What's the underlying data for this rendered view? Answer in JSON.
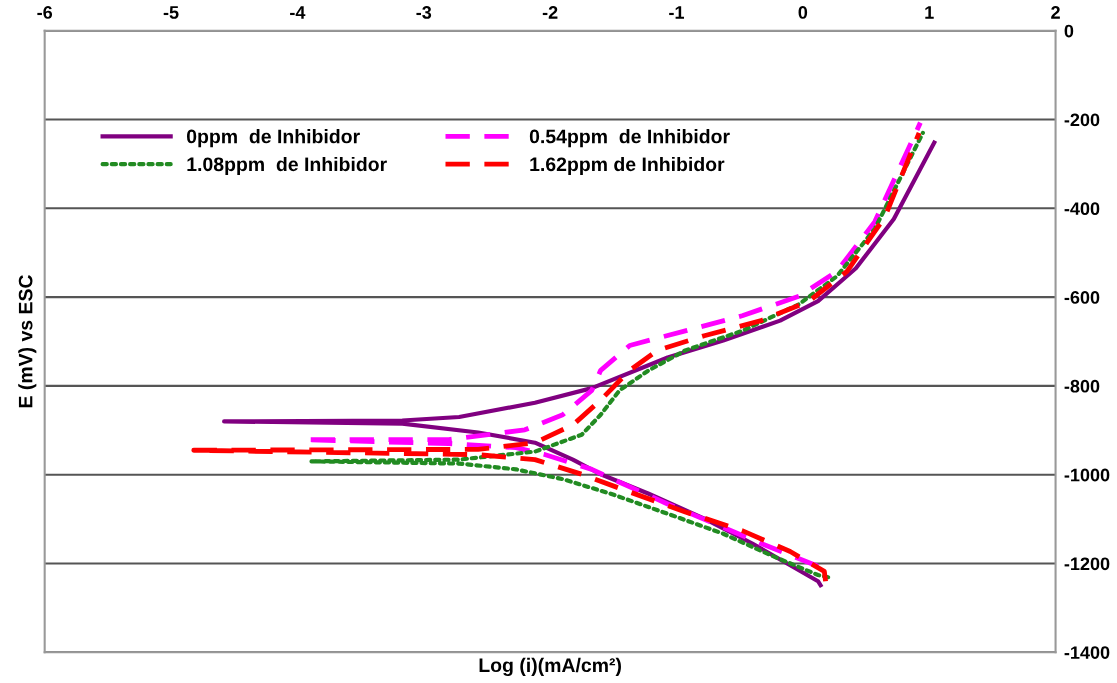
{
  "chart_data": {
    "type": "line",
    "xlabel": "Log (i)(mA/cm²)",
    "ylabel": "E (mV) vs ESC",
    "xlim": [
      -6,
      2
    ],
    "xticks": [
      -6,
      -5,
      -4,
      -3,
      -2,
      -1,
      0,
      1,
      2
    ],
    "ylim": [
      -1400,
      0
    ],
    "yticks": [
      -1400,
      -1200,
      -1000,
      -800,
      -600,
      -400,
      -200,
      0
    ],
    "grid": "y",
    "legend": "top left",
    "series": [
      {
        "name": "0ppm  de Inhibidor",
        "color": "#800080",
        "line_style": "solid",
        "x": [
          0.14,
          0.12,
          -0.1,
          -0.4,
          -0.78,
          -1.22,
          -1.6,
          -1.82,
          -2.12,
          -2.57,
          -3.17,
          -4.58,
          -3.17,
          -2.72,
          -2.12,
          -1.67,
          -1.07,
          -0.63,
          -0.18,
          0.12,
          0.42,
          0.72,
          1.04
        ],
        "values": [
          -1249,
          -1240,
          -1204,
          -1155,
          -1099,
          -1043,
          -999,
          -966,
          -928,
          -905,
          -885,
          -880,
          -878,
          -870,
          -838,
          -805,
          -736,
          -698,
          -653,
          -609,
          -535,
          -424,
          -252
        ]
      },
      {
        "name": "0.54ppm  de Inhibidor",
        "color": "#ff00ff",
        "line_style": "dashed",
        "x": [
          0.12,
          -0.33,
          -0.7,
          -1.07,
          -1.45,
          -1.67,
          -2.05,
          -2.27,
          -2.8,
          -3.95,
          -2.8,
          -2.2,
          -1.9,
          -1.67,
          -1.6,
          -1.37,
          -0.93,
          -0.48,
          -0.03,
          0.27,
          0.57,
          0.93
        ],
        "values": [
          -1206,
          -1155,
          -1110,
          -1066,
          -1017,
          -988,
          -954,
          -939,
          -930,
          -921,
          -921,
          -899,
          -865,
          -810,
          -765,
          -709,
          -676,
          -642,
          -598,
          -542,
          -430,
          -207
        ]
      },
      {
        "name": "1.08ppm  de Inhibidor",
        "color": "#228b22",
        "line_style": "dotted",
        "x": [
          0.2,
          0.12,
          -0.25,
          -0.63,
          -1.07,
          -1.52,
          -1.9,
          -2.27,
          -2.72,
          -3.89,
          -2.72,
          -2.12,
          -1.75,
          -1.6,
          -1.45,
          -1.22,
          -0.93,
          -0.48,
          -0.03,
          0.27,
          0.57,
          0.95
        ],
        "values": [
          -1231,
          -1226,
          -1182,
          -1133,
          -1088,
          -1043,
          -1010,
          -988,
          -975,
          -970,
          -966,
          -948,
          -910,
          -865,
          -810,
          -765,
          -720,
          -676,
          -616,
          -553,
          -446,
          -230
        ]
      },
      {
        "name": "1.62ppm de Inhibidor",
        "color": "#ff0000",
        "line_style": "dashed",
        "x": [
          0.18,
          0.17,
          -0.1,
          -0.48,
          -0.93,
          -1.37,
          -1.75,
          -2.12,
          -2.57,
          -4.82,
          -2.57,
          -2.12,
          -1.82,
          -1.6,
          -1.37,
          -1.15,
          -0.78,
          -0.33,
          0.05,
          0.35,
          0.65,
          0.92
        ],
        "values": [
          -1240,
          -1218,
          -1173,
          -1126,
          -1084,
          -1039,
          -999,
          -966,
          -955,
          -945,
          -943,
          -928,
          -888,
          -832,
          -765,
          -720,
          -687,
          -653,
          -609,
          -542,
          -419,
          -230
        ]
      }
    ]
  }
}
